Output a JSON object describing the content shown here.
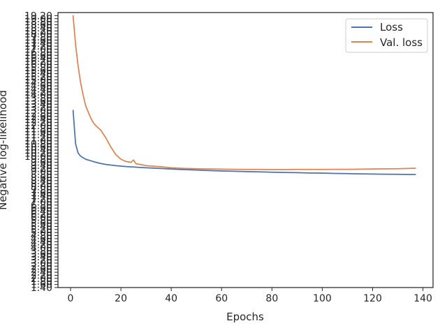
{
  "chart_data": {
    "type": "line",
    "title": "",
    "xlabel": "Epochs",
    "ylabel": "Negative log-likelihood",
    "xlim": [
      -5,
      144
    ],
    "ylim": [
      1.4,
      19.4
    ],
    "xticks": [
      "0",
      "20",
      "40",
      "60",
      "80",
      "100",
      "120",
      "140"
    ],
    "yticks": [
      "1.40",
      "1.60",
      "1.80",
      "2.00",
      "2.20",
      "2.40",
      "2.60",
      "2.80",
      "3.00",
      "3.20",
      "3.40",
      "3.60",
      "3.80",
      "4.00",
      "4.20",
      "4.40",
      "4.60",
      "4.80",
      "5.00",
      "5.20",
      "5.40",
      "5.60",
      "5.80",
      "6.00",
      "6.20",
      "6.40",
      "6.60",
      "6.80",
      "7.00",
      "7.20",
      "7.40",
      "7.60",
      "7.80",
      "8.00",
      "8.20",
      "8.40",
      "8.60",
      "8.80",
      "9.00",
      "9.20",
      "9.40",
      "9.60",
      "9.80",
      "10.00",
      "10.20",
      "10.40",
      "10.60",
      "10.80",
      "11.00",
      "11.20",
      "11.40",
      "11.60",
      "11.80",
      "12.00",
      "12.20",
      "12.40",
      "12.60",
      "12.80",
      "13.00",
      "13.20",
      "13.40",
      "13.60",
      "13.80",
      "14.00",
      "14.20",
      "14.40",
      "14.60",
      "14.80",
      "15.00",
      "15.20",
      "15.40",
      "15.60",
      "15.80",
      "16.00",
      "16.20",
      "16.40",
      "16.60",
      "16.80",
      "17.00",
      "17.20",
      "17.40",
      "17.60",
      "17.80",
      "18.00",
      "18.20",
      "18.40",
      "18.60",
      "18.80",
      "19.00",
      "19.20"
    ],
    "grid": false,
    "legend_position": "top-right",
    "x": [
      1,
      2,
      3,
      4,
      5,
      6,
      7,
      8,
      9,
      10,
      12,
      14,
      16,
      18,
      20,
      22,
      24,
      25,
      26,
      28,
      30,
      35,
      40,
      45,
      50,
      55,
      60,
      65,
      70,
      75,
      80,
      85,
      90,
      95,
      100,
      105,
      110,
      115,
      120,
      125,
      130,
      135,
      137
    ],
    "series": [
      {
        "name": "Loss",
        "color": "#4c72b0",
        "values": [
          13.0,
          10.8,
          10.2,
          10.0,
          9.9,
          9.8,
          9.75,
          9.7,
          9.65,
          9.6,
          9.52,
          9.46,
          9.42,
          9.38,
          9.35,
          9.32,
          9.3,
          9.29,
          9.28,
          9.26,
          9.24,
          9.2,
          9.16,
          9.12,
          9.09,
          9.06,
          9.03,
          9.01,
          8.99,
          8.97,
          8.95,
          8.93,
          8.92,
          8.9,
          8.89,
          8.87,
          8.86,
          8.84,
          8.83,
          8.82,
          8.81,
          8.8,
          8.8
        ]
      },
      {
        "name": "Val. loss",
        "color": "#dd8452",
        "values": [
          19.2,
          17.3,
          15.9,
          14.8,
          14.0,
          13.3,
          12.9,
          12.5,
          12.2,
          12.0,
          11.7,
          11.2,
          10.6,
          10.1,
          9.8,
          9.65,
          9.6,
          9.75,
          9.5,
          9.45,
          9.38,
          9.32,
          9.24,
          9.2,
          9.18,
          9.16,
          9.15,
          9.14,
          9.13,
          9.13,
          9.12,
          9.12,
          9.13,
          9.13,
          9.13,
          9.14,
          9.14,
          9.15,
          9.16,
          9.17,
          9.18,
          9.2,
          9.21
        ]
      }
    ]
  }
}
